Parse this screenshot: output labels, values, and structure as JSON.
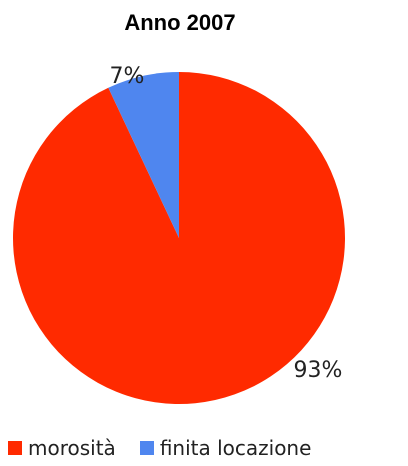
{
  "chart_data": {
    "type": "pie",
    "title": "Anno 2007",
    "slices": [
      {
        "name": "morosità",
        "value": 93,
        "label": "93%",
        "color": "#ff2a00"
      },
      {
        "name": "finita locazione",
        "value": 7,
        "label": "7%",
        "color": "#4f86ef"
      }
    ],
    "legend_position": "bottom"
  }
}
